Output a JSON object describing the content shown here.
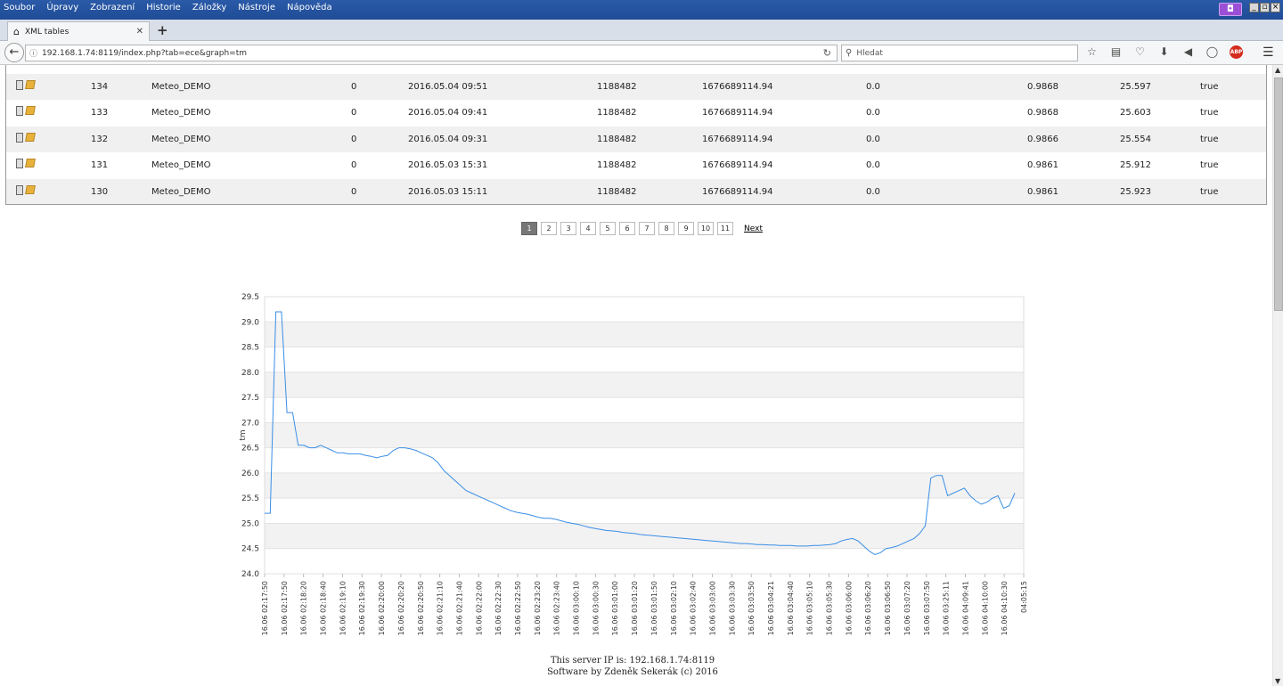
{
  "menubar": [
    "Soubor",
    "Úpravy",
    "Zobrazení",
    "Historie",
    "Záložky",
    "Nástroje",
    "Nápověda"
  ],
  "tab": {
    "title": "XML tables"
  },
  "nav": {
    "url": "192.168.1.74:8119/index.php?tab=ece&graph=tm",
    "search_placeholder": "Hledat"
  },
  "table": {
    "rows": [
      {
        "id": "134",
        "name": "Meteo_DEMO",
        "flag": "0",
        "date": "2016.05.04 09:51",
        "c1": "1188482",
        "c2": "1676689114.94",
        "c3": "0.0",
        "c4": "0.9868",
        "c5": "25.597",
        "c6": "true"
      },
      {
        "id": "133",
        "name": "Meteo_DEMO",
        "flag": "0",
        "date": "2016.05.04 09:41",
        "c1": "1188482",
        "c2": "1676689114.94",
        "c3": "0.0",
        "c4": "0.9868",
        "c5": "25.603",
        "c6": "true"
      },
      {
        "id": "132",
        "name": "Meteo_DEMO",
        "flag": "0",
        "date": "2016.05.04 09:31",
        "c1": "1188482",
        "c2": "1676689114.94",
        "c3": "0.0",
        "c4": "0.9866",
        "c5": "25.554",
        "c6": "true"
      },
      {
        "id": "131",
        "name": "Meteo_DEMO",
        "flag": "0",
        "date": "2016.05.03 15:31",
        "c1": "1188482",
        "c2": "1676689114.94",
        "c3": "0.0",
        "c4": "0.9861",
        "c5": "25.912",
        "c6": "true"
      },
      {
        "id": "130",
        "name": "Meteo_DEMO",
        "flag": "0",
        "date": "2016.05.03 15:11",
        "c1": "1188482",
        "c2": "1676689114.94",
        "c3": "0.0",
        "c4": "0.9861",
        "c5": "25.923",
        "c6": "true"
      }
    ]
  },
  "pager": {
    "pages": [
      "1",
      "2",
      "3",
      "4",
      "5",
      "6",
      "7",
      "8",
      "9",
      "10",
      "11"
    ],
    "active": "1",
    "next": "Next"
  },
  "chart_data": {
    "type": "line",
    "ylabel": "tm",
    "ylim": [
      24.0,
      29.5
    ],
    "yticks": [
      "24.0",
      "24.5",
      "25.0",
      "25.5",
      "26.0",
      "26.5",
      "27.0",
      "27.5",
      "28.0",
      "28.5",
      "29.0",
      "29.5"
    ],
    "xticks": [
      "16.06 02:17:50",
      "16.06 02:17:50",
      "16.06 02:18:20",
      "16.06 02:18:40",
      "16.06 02:19:10",
      "16.06 02:19:30",
      "16.06 02:20:00",
      "16.06 02:20:20",
      "16.06 02:20:50",
      "16.06 02:21:10",
      "16.06 02:21:40",
      "16.06 02:22:00",
      "16.06 02:22:30",
      "16.06 02:22:50",
      "16.06 02:23:20",
      "16.06 02:23:40",
      "16.06 03:00:10",
      "16.06 03:00:30",
      "16.06 03:01:00",
      "16.06 03:01:20",
      "16.06 03:01:50",
      "16.06 03:02:10",
      "16.06 03:02:40",
      "16.06 03:03:00",
      "16.06 03:03:30",
      "16.06 03:03:50",
      "16.06 03:04:21",
      "16.06 03:04:40",
      "16.06 03:05:10",
      "16.06 03:05:30",
      "16.06 03:06:00",
      "16.06 03:06:20",
      "16.06 03:06:50",
      "16.06 03:07:20",
      "16.06 03:07:50",
      "16.06 03:25:11",
      "16.06 04:09:41",
      "16.06 04:10:00",
      "16.06 04:10:30",
      "04:05:15"
    ],
    "grid": true,
    "series": [
      {
        "color": "#3a8ee6",
        "values": [
          25.2,
          25.2,
          29.2,
          29.2,
          27.2,
          27.2,
          26.55,
          26.55,
          26.5,
          26.5,
          26.55,
          26.5,
          26.45,
          26.4,
          26.4,
          26.38,
          26.38,
          26.38,
          26.35,
          26.33,
          26.3,
          26.33,
          26.35,
          26.45,
          26.5,
          26.5,
          26.48,
          26.45,
          26.4,
          26.35,
          26.3,
          26.2,
          26.05,
          25.95,
          25.85,
          25.75,
          25.65,
          25.6,
          25.55,
          25.5,
          25.45,
          25.4,
          25.35,
          25.3,
          25.25,
          25.22,
          25.2,
          25.18,
          25.15,
          25.12,
          25.1,
          25.1,
          25.08,
          25.05,
          25.02,
          25.0,
          24.98,
          24.95,
          24.92,
          24.9,
          24.88,
          24.86,
          24.85,
          24.84,
          24.82,
          24.81,
          24.8,
          24.78,
          24.77,
          24.76,
          24.75,
          24.74,
          24.73,
          24.72,
          24.71,
          24.7,
          24.69,
          24.68,
          24.67,
          24.66,
          24.65,
          24.64,
          24.63,
          24.62,
          24.61,
          24.6,
          24.6,
          24.59,
          24.58,
          24.58,
          24.57,
          24.57,
          24.56,
          24.56,
          24.56,
          24.55,
          24.55,
          24.55,
          24.56,
          24.56,
          24.57,
          24.58,
          24.6,
          24.65,
          24.68,
          24.7,
          24.65,
          24.55,
          24.45,
          24.38,
          24.42,
          24.5,
          24.52,
          24.55,
          24.6,
          24.65,
          24.7,
          24.8,
          24.95,
          25.9,
          25.95,
          25.95,
          25.55,
          25.6,
          25.65,
          25.7,
          25.55,
          25.45,
          25.38,
          25.42,
          25.5,
          25.55,
          25.3,
          25.35,
          25.6
        ]
      }
    ]
  },
  "footer": {
    "line1": "This server IP is: 192.168.1.74:8119",
    "line2": "Software by Zdeněk Sekerák (c) 2016"
  }
}
